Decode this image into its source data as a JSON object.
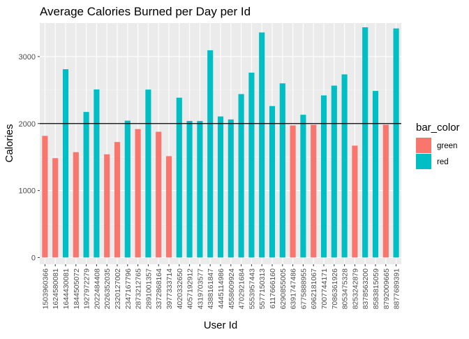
{
  "chart_data": {
    "type": "bar",
    "title": "Average Calories Burned per Day per Id",
    "xlabel": "User Id",
    "ylabel": "Calories",
    "ylim": [
      -100,
      3500
    ],
    "yticks": [
      0,
      1000,
      2000,
      3000
    ],
    "grid": true,
    "reference_line": 2000,
    "legend": {
      "title": "bar_color",
      "position": "right",
      "entries": [
        {
          "label": "green",
          "color": "#F8766D"
        },
        {
          "label": "red",
          "color": "#00BFC4"
        }
      ]
    },
    "categories": [
      "1503960366",
      "1624580081",
      "1644430081",
      "1844505072",
      "1927972279",
      "2022484408",
      "2026352035",
      "2320127002",
      "2347167796",
      "2873212765",
      "2891001357",
      "3372868164",
      "3977333714",
      "4020332650",
      "4057192912",
      "4319703577",
      "4388161847",
      "4445114986",
      "4558609924",
      "4702921684",
      "5553957443",
      "5577150313",
      "6117666160",
      "6290855005",
      "6391747486",
      "6775888955",
      "6962181067",
      "7007744171",
      "7086361926",
      "8053475328",
      "8253242879",
      "8378563200",
      "8583815059",
      "8792009665",
      "8877689391"
    ],
    "values": [
      1816,
      1483,
      2811,
      1573,
      2173,
      2509,
      1541,
      1724,
      2043,
      1917,
      2507,
      1877,
      1513,
      2386,
      2039,
      2038,
      3094,
      2106,
      2061,
      2440,
      2760,
      3360,
      2261,
      2600,
      1972,
      2131,
      1982,
      2420,
      2566,
      2734,
      1670,
      3437,
      2487,
      1982,
      3420
    ],
    "bar_color": [
      "green",
      "green",
      "red",
      "green",
      "red",
      "red",
      "green",
      "green",
      "red",
      "green",
      "red",
      "green",
      "green",
      "red",
      "red",
      "red",
      "red",
      "red",
      "red",
      "red",
      "red",
      "red",
      "red",
      "red",
      "green",
      "red",
      "green",
      "red",
      "red",
      "red",
      "green",
      "red",
      "red",
      "green",
      "red"
    ]
  }
}
